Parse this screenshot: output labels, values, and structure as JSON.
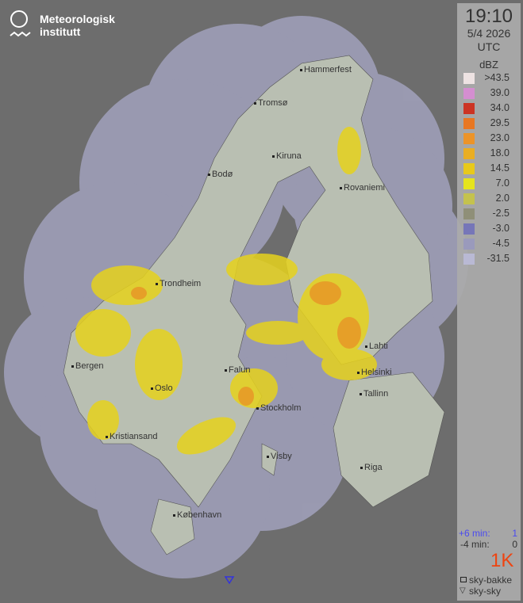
{
  "logo": {
    "text": "Meteorologisk\ninstitutt"
  },
  "panel": {
    "time": "19:10",
    "date": "5/4 2026",
    "timezone": "UTC",
    "unit": "dBZ",
    "legend": [
      {
        "label": ">43.5",
        "color": "#ede2e2"
      },
      {
        "label": "39.0",
        "color": "#d48ed0"
      },
      {
        "label": "34.0",
        "color": "#cc3423"
      },
      {
        "label": "29.5",
        "color": "#e87722"
      },
      {
        "label": "23.0",
        "color": "#ec9428"
      },
      {
        "label": "18.0",
        "color": "#eaae22"
      },
      {
        "label": "14.5",
        "color": "#e8c91a"
      },
      {
        "label": "7.0",
        "color": "#e6e41c"
      },
      {
        "label": "2.0",
        "color": "#c4c24e"
      },
      {
        "label": "-2.5",
        "color": "#8f8f78"
      },
      {
        "label": "-3.0",
        "color": "#7676b8"
      },
      {
        "label": "-4.5",
        "color": "#9a9abc"
      },
      {
        "label": "-31.5",
        "color": "#b9b9d4"
      }
    ],
    "forecast": [
      {
        "label": "+6 min:",
        "value": "1",
        "color": "#4a4af0"
      },
      {
        "label": "-4 min:",
        "value": "0",
        "color": "#222222"
      }
    ],
    "brand_mark": "1K",
    "station_types": [
      {
        "icon": "square-icon",
        "label": "sky-bakke"
      },
      {
        "icon": "triangle-icon",
        "label": "sky-sky"
      }
    ]
  },
  "cities": [
    "Hammerfest",
    "Tromsø",
    "Kiruna",
    "Bodø",
    "Rovaniemi",
    "Trondheim",
    "Bergen",
    "Oslo",
    "Falun",
    "Stockholm",
    "Lahti",
    "Helsinki",
    "Tallinn",
    "Kristiansand",
    "Visby",
    "Riga",
    "København"
  ]
}
